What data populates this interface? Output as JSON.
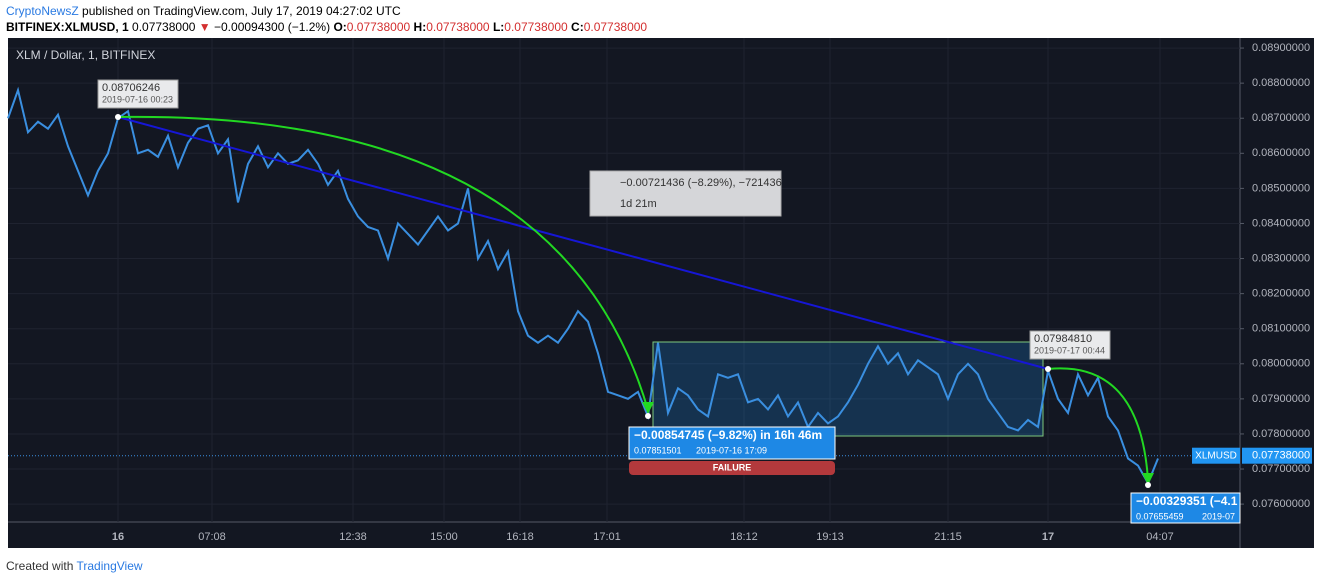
{
  "header": {
    "publisher": "CryptoNewsZ",
    "published": "published on TradingView.com, July 17, 2019 04:27:02 UTC",
    "symbol": "BITFINEX:XLMUSD, 1",
    "price": "0.07738000",
    "arrow": "▼",
    "change": "−0.00094300 (−1.2%)",
    "ohlc": [
      {
        "key": "O:",
        "value": "0.07738000"
      },
      {
        "key": "H:",
        "value": "0.07738000"
      },
      {
        "key": "L:",
        "value": "0.07738000"
      },
      {
        "key": "C:",
        "value": "0.07738000"
      }
    ]
  },
  "chart_data": {
    "type": "line",
    "title": "XLM / Dollar, 1, BITFINEX",
    "series": [
      {
        "name": "XLMUSD",
        "color": "#3a8fe0",
        "values": [
          0.087,
          0.0878,
          0.0866,
          0.0869,
          0.0867,
          0.0871,
          0.0862,
          0.0855,
          0.0848,
          0.0855,
          0.086,
          0.087,
          0.0872,
          0.086,
          0.0861,
          0.0859,
          0.0865,
          0.0856,
          0.0863,
          0.0867,
          0.0868,
          0.086,
          0.0864,
          0.0846,
          0.0857,
          0.0862,
          0.0856,
          0.086,
          0.0857,
          0.0858,
          0.0861,
          0.0857,
          0.0851,
          0.0855,
          0.0847,
          0.0842,
          0.0839,
          0.0838,
          0.083,
          0.084,
          0.0837,
          0.0834,
          0.0838,
          0.0842,
          0.0838,
          0.084,
          0.085,
          0.083,
          0.0835,
          0.0827,
          0.0832,
          0.0815,
          0.0808,
          0.0806,
          0.0808,
          0.0806,
          0.081,
          0.0815,
          0.0812,
          0.0803,
          0.0792,
          0.0791,
          0.079,
          0.0792,
          0.0785,
          0.0806,
          0.0786,
          0.0793,
          0.0791,
          0.0787,
          0.0785,
          0.0797,
          0.0796,
          0.0797,
          0.0789,
          0.079,
          0.0787,
          0.0791,
          0.0785,
          0.0789,
          0.0782,
          0.0786,
          0.0783,
          0.0785,
          0.0789,
          0.0794,
          0.08,
          0.0805,
          0.08,
          0.0803,
          0.0797,
          0.0801,
          0.0799,
          0.0797,
          0.079,
          0.0797,
          0.08,
          0.0797,
          0.079,
          0.0786,
          0.0782,
          0.0781,
          0.0784,
          0.0782,
          0.0798,
          0.079,
          0.0786,
          0.0797,
          0.0791,
          0.0796,
          0.0785,
          0.0781,
          0.0773,
          0.0771,
          0.0766,
          0.0773
        ]
      }
    ],
    "xlim": [
      0,
      123.2
    ],
    "xticks": [
      {
        "value": 11,
        "label": "16"
      },
      {
        "value": 20.4,
        "label": "07:08"
      },
      {
        "value": 34.5,
        "label": "12:38"
      },
      {
        "value": 43.6,
        "label": "15:00"
      },
      {
        "value": 51.2,
        "label": "16:18"
      },
      {
        "value": 59.9,
        "label": "17:01"
      },
      {
        "value": 73.6,
        "label": "18:12"
      },
      {
        "value": 82.2,
        "label": "19:13"
      },
      {
        "value": 94,
        "label": "21:15"
      },
      {
        "value": 104,
        "label": "17"
      },
      {
        "value": 115.2,
        "label": "04:07"
      }
    ],
    "ylim": [
      0.07549,
      0.08923
    ],
    "yticks": [
      {
        "value": 0.076,
        "label": "0.07600000"
      },
      {
        "value": 0.077,
        "label": "0.07700000"
      },
      {
        "value": 0.078,
        "label": "0.07800000"
      },
      {
        "value": 0.079,
        "label": "0.07900000"
      },
      {
        "value": 0.08,
        "label": "0.08000000"
      },
      {
        "value": 0.081,
        "label": "0.08100000"
      },
      {
        "value": 0.082,
        "label": "0.08200000"
      },
      {
        "value": 0.083,
        "label": "0.08300000"
      },
      {
        "value": 0.084,
        "label": "0.08400000"
      },
      {
        "value": 0.085,
        "label": "0.08500000"
      },
      {
        "value": 0.086,
        "label": "0.08600000"
      },
      {
        "value": 0.087,
        "label": "0.08700000"
      },
      {
        "value": 0.088,
        "label": "0.08800000"
      },
      {
        "value": 0.089,
        "label": "0.08900000"
      }
    ],
    "last_price": {
      "value": 0.07738,
      "label": "0.07738000"
    },
    "annotations": {
      "high_price": "0.08706246",
      "high_time": "2019-07-16 00:23",
      "right_price": "0.07984810",
      "right_time": "2019-07-17 00:44",
      "measure_change": "−0.00721436 (−8.29%), −721436",
      "measure_time": "1d 21m",
      "drop_change": "−0.00854745 (−9.82%) in 16h 46m",
      "drop_price": "0.07851501",
      "drop_time": "2019-07-16  17:09",
      "failure": "FAILURE",
      "drop2_change": "−0.00329351 (−4.1",
      "drop2_price": "0.07655459",
      "drop2_time": "2019-07"
    }
  },
  "footer": {
    "created": "Created with",
    "brand": "TradingView"
  }
}
